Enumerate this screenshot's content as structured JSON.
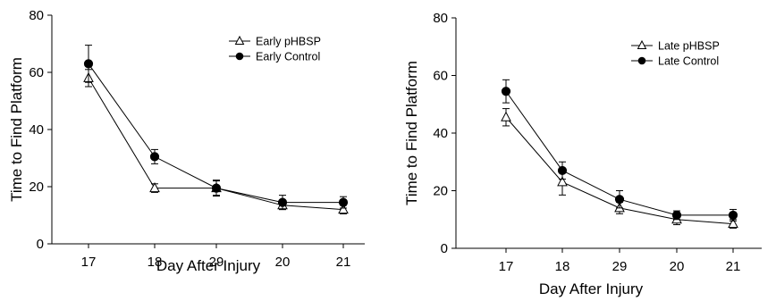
{
  "chart_data": [
    {
      "type": "line",
      "categories": [
        "17",
        "18",
        "29",
        "20",
        "21"
      ],
      "xlabel": "Day After Injury",
      "ylabel": "Time to Find Platform",
      "ylim": [
        0,
        80
      ],
      "yticks": [
        0,
        20,
        40,
        60,
        80
      ],
      "grid": false,
      "legend_position": "top-right",
      "series": [
        {
          "name": "Early pHBSP",
          "marker": "open-triangle",
          "values": [
            58,
            19.5,
            19.5,
            13.5,
            12
          ],
          "errors": [
            3,
            1.5,
            2.8,
            1.5,
            1.5
          ]
        },
        {
          "name": "Early Control",
          "marker": "filled-circle",
          "values": [
            63,
            30.5,
            19.5,
            14.5,
            14.5
          ],
          "errors": [
            6.5,
            2.5,
            2.5,
            2.5,
            2
          ]
        }
      ]
    },
    {
      "type": "line",
      "categories": [
        "17",
        "18",
        "29",
        "20",
        "21"
      ],
      "xlabel": "Day After Injury",
      "ylabel": "Time to Find Platform",
      "ylim": [
        0,
        80
      ],
      "yticks": [
        0,
        20,
        40,
        60,
        80
      ],
      "grid": false,
      "legend_position": "top-right",
      "series": [
        {
          "name": "Late pHBSP",
          "marker": "open-triangle",
          "values": [
            45.5,
            23,
            14,
            10,
            8.5
          ],
          "errors": [
            3,
            4.5,
            2,
            1.8,
            1.5
          ]
        },
        {
          "name": "Late Control",
          "marker": "filled-circle",
          "values": [
            54.5,
            27,
            17,
            11.5,
            11.5
          ],
          "errors": [
            4,
            3,
            3,
            1.5,
            2
          ]
        }
      ]
    }
  ]
}
